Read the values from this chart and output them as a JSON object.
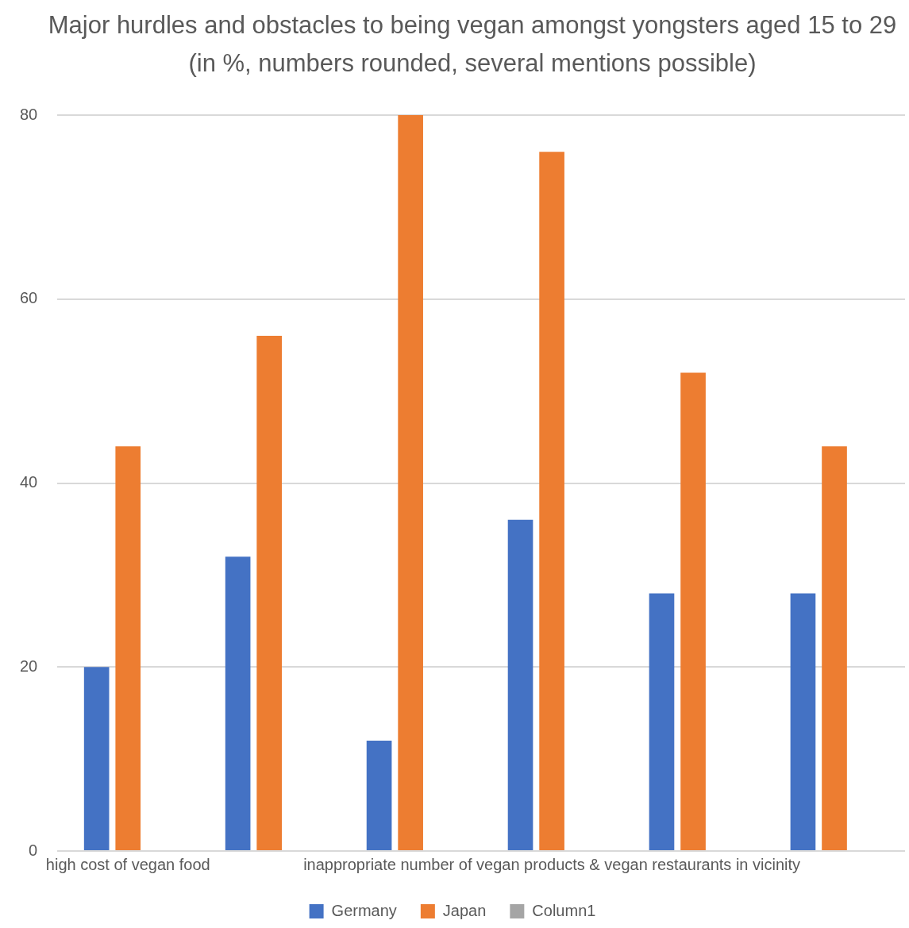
{
  "chart_data": {
    "type": "bar",
    "title": "Major hurdles and obstacles to being vegan amongst yongsters aged 15 to 29 (in %, numbers rounded, several mentions possible)",
    "categories": [
      "high cost of vegan food",
      null,
      null,
      "inappropriate number of vegan products & vegan restaurants in vicinity",
      null,
      null
    ],
    "series": [
      {
        "name": "Germany",
        "color": "#4472c4",
        "values": [
          20,
          32,
          12,
          36,
          28,
          28
        ]
      },
      {
        "name": "Japan",
        "color": "#ed7d31",
        "values": [
          44,
          56,
          80,
          76,
          52,
          44
        ]
      },
      {
        "name": "Column1",
        "color": "#a5a5a5",
        "values": [
          null,
          null,
          null,
          null,
          null,
          null
        ]
      }
    ],
    "ylim": [
      0,
      80
    ],
    "yticks": [
      0,
      20,
      40,
      60,
      80
    ],
    "grid": "y",
    "legend": "bottom"
  }
}
